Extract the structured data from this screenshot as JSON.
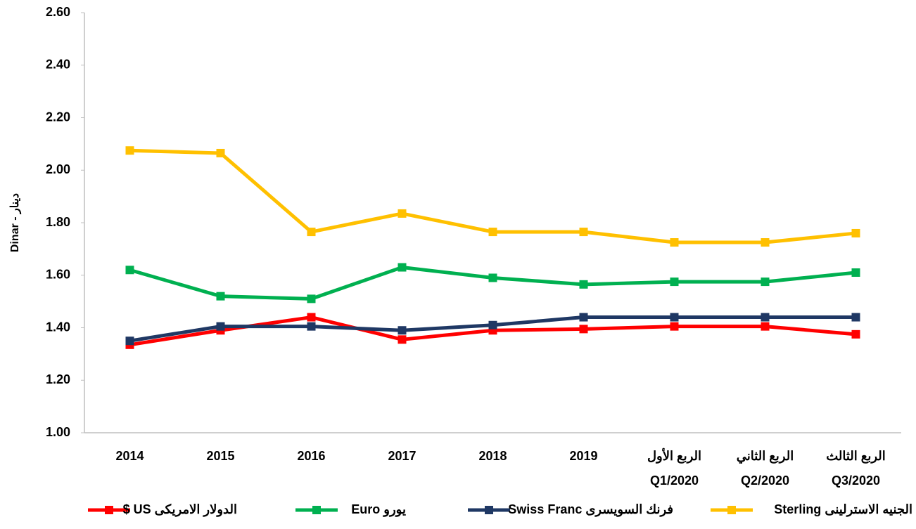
{
  "chart_data": {
    "type": "line",
    "y_label": "Dinar - دينار",
    "categories": [
      "2014",
      "2015",
      "2016",
      "2017",
      "2018",
      "2019",
      [
        "الربع الأول",
        "Q1/2020"
      ],
      [
        "الربع الثاني",
        "Q2/2020"
      ],
      [
        "الربع الثالث",
        "Q3/2020"
      ]
    ],
    "series": [
      {
        "name": "الدولار الامريكى US $",
        "color": "#ff0000",
        "values": [
          1.335,
          1.39,
          1.44,
          1.355,
          1.39,
          1.395,
          1.405,
          1.405,
          1.375
        ]
      },
      {
        "name": "يورو Euro",
        "color": "#00b050",
        "values": [
          1.62,
          1.52,
          1.51,
          1.63,
          1.59,
          1.565,
          1.575,
          1.575,
          1.61
        ]
      },
      {
        "name": "فرنك السويسرى Swiss Franc",
        "color": "#1f3864",
        "values": [
          1.35,
          1.405,
          1.405,
          1.39,
          1.41,
          1.44,
          1.44,
          1.44,
          1.44
        ]
      },
      {
        "name": "الجنيه الاسترلينى Sterling",
        "color": "#ffc000",
        "values": [
          2.075,
          2.065,
          1.765,
          1.835,
          1.765,
          1.765,
          1.725,
          1.725,
          1.76
        ]
      }
    ],
    "ylim": [
      1.0,
      2.6
    ],
    "yticks": [
      {
        "value": 1.0,
        "label": "1.00"
      },
      {
        "value": 1.2,
        "label": "1.20"
      },
      {
        "value": 1.4,
        "label": "1.40"
      },
      {
        "value": 1.6,
        "label": "1.60"
      },
      {
        "value": 1.8,
        "label": "1.80"
      },
      {
        "value": 2.0,
        "label": "2.00"
      },
      {
        "value": 2.2,
        "label": "2.20"
      },
      {
        "value": 2.4,
        "label": "2.40"
      },
      {
        "value": 2.6,
        "label": "2.60"
      }
    ],
    "grid": false
  }
}
